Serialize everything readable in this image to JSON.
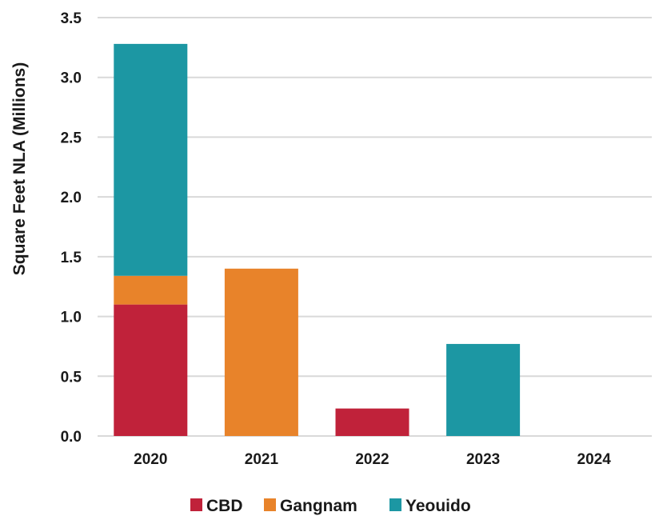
{
  "chart_data": {
    "type": "bar",
    "stacked": true,
    "title": "",
    "xlabel": "",
    "ylabel": "Square Feet NLA (Millions)",
    "categories": [
      "2020",
      "2021",
      "2022",
      "2023",
      "2024"
    ],
    "ylim": [
      0,
      3.5
    ],
    "yticks": [
      0,
      0.5,
      1.0,
      1.5,
      2.0,
      2.5,
      3.0,
      3.5
    ],
    "ytick_labels": [
      "0.0",
      "0.5",
      "1.0",
      "1.5",
      "2.0",
      "2.5",
      "3.0",
      "3.5"
    ],
    "grid": true,
    "legend_position": "bottom",
    "series": [
      {
        "name": "CBD",
        "color": "#c0223a",
        "values": [
          1.1,
          0,
          0.23,
          0,
          0
        ]
      },
      {
        "name": "Gangnam",
        "color": "#e8832a",
        "values": [
          0.24,
          1.4,
          0,
          0,
          0
        ]
      },
      {
        "name": "Yeouido",
        "color": "#1c97a3",
        "values": [
          1.94,
          0,
          0,
          0.77,
          0
        ]
      }
    ]
  }
}
